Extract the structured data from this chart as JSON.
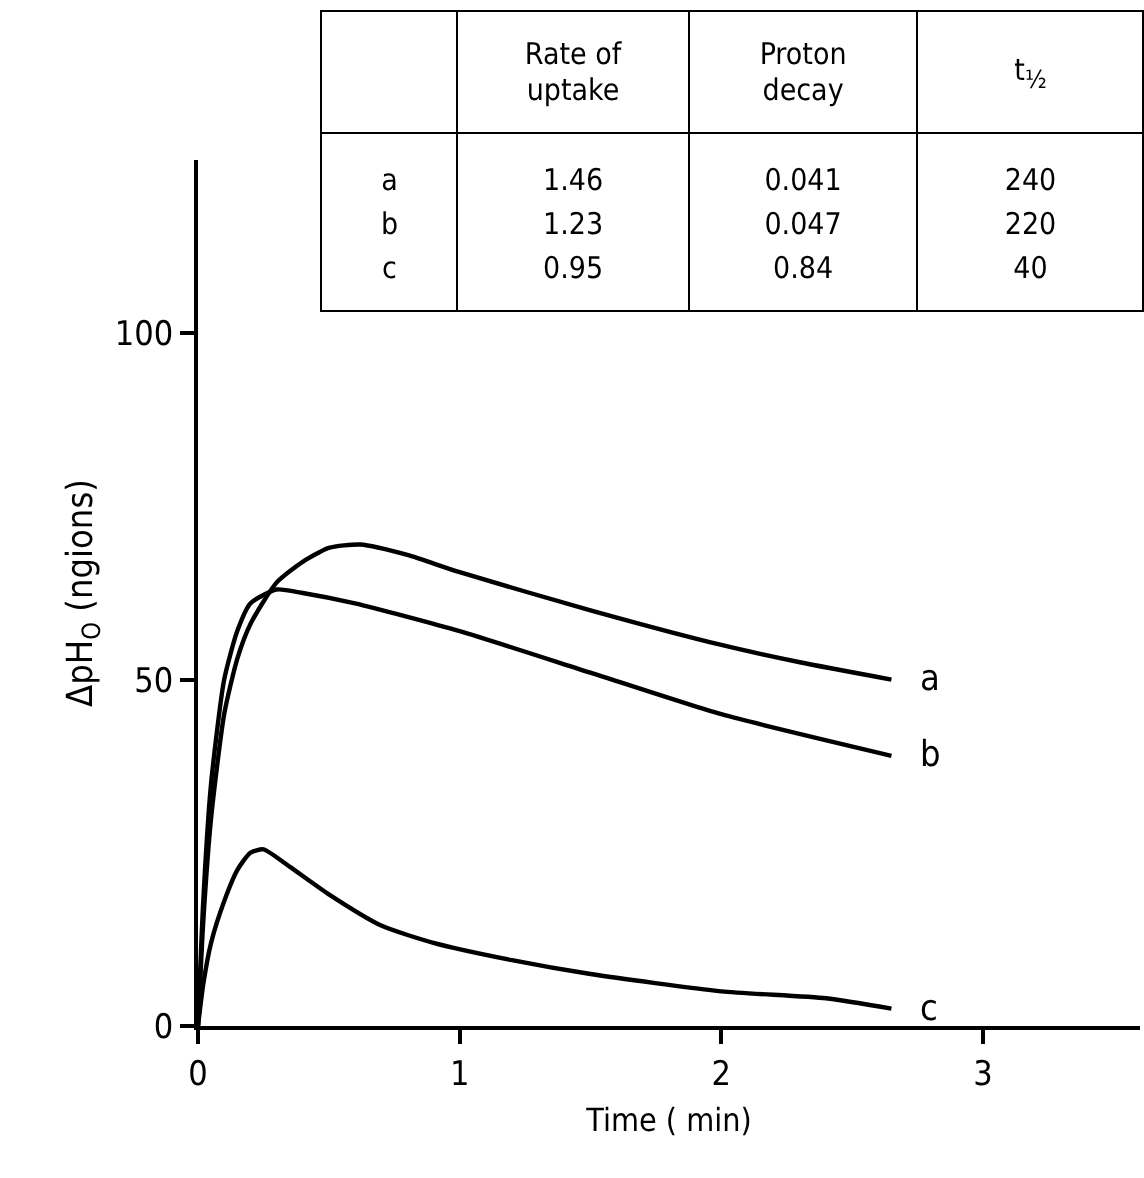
{
  "chart_data": {
    "type": "line",
    "xlabel": "Time ( min)",
    "ylabel": "ΔpH$_{O}$ (ngions)",
    "xlim": [
      0,
      3.6
    ],
    "ylim": [
      0,
      125
    ],
    "xticks": [
      0,
      1,
      2,
      3
    ],
    "yticks": [
      0,
      50,
      100
    ],
    "grid": false,
    "legend": false,
    "marker": "none",
    "line_style": "solid",
    "series": [
      {
        "name": "a",
        "color": "#000000",
        "x": [
          0,
          0.02,
          0.05,
          0.1,
          0.15,
          0.2,
          0.3,
          0.4,
          0.5,
          0.62,
          0.8,
          1,
          1.5,
          2,
          2.3,
          2.65
        ],
        "values": [
          0,
          15,
          30,
          45,
          53,
          58,
          64,
          67,
          69,
          69.5,
          68,
          65.5,
          60,
          55,
          52.5,
          50
        ]
      },
      {
        "name": "b",
        "color": "#000000",
        "x": [
          0,
          0.02,
          0.05,
          0.1,
          0.15,
          0.2,
          0.3,
          0.4,
          0.6,
          1,
          1.5,
          2,
          2.65
        ],
        "values": [
          0,
          18,
          35,
          50,
          57,
          61,
          63,
          62.5,
          61,
          57,
          51,
          45,
          39
        ]
      },
      {
        "name": "c",
        "color": "#000000",
        "x": [
          0,
          0.02,
          0.05,
          0.1,
          0.15,
          0.2,
          0.25,
          0.35,
          0.5,
          0.7,
          0.9,
          1.2,
          1.5,
          2,
          2.4,
          2.65
        ],
        "values": [
          0,
          6,
          12,
          18,
          22.5,
          25,
          25.5,
          23,
          19,
          14.5,
          12,
          9.5,
          7.5,
          5,
          4,
          2.5
        ]
      }
    ],
    "annotations": [
      "Rate of uptake",
      "Proton decay",
      "t$_{½}$",
      "a",
      "1.46",
      "0.041",
      "240",
      "b",
      "1.23",
      "0.047",
      "220",
      "c",
      "0.95",
      "0.84",
      "40"
    ]
  }
}
